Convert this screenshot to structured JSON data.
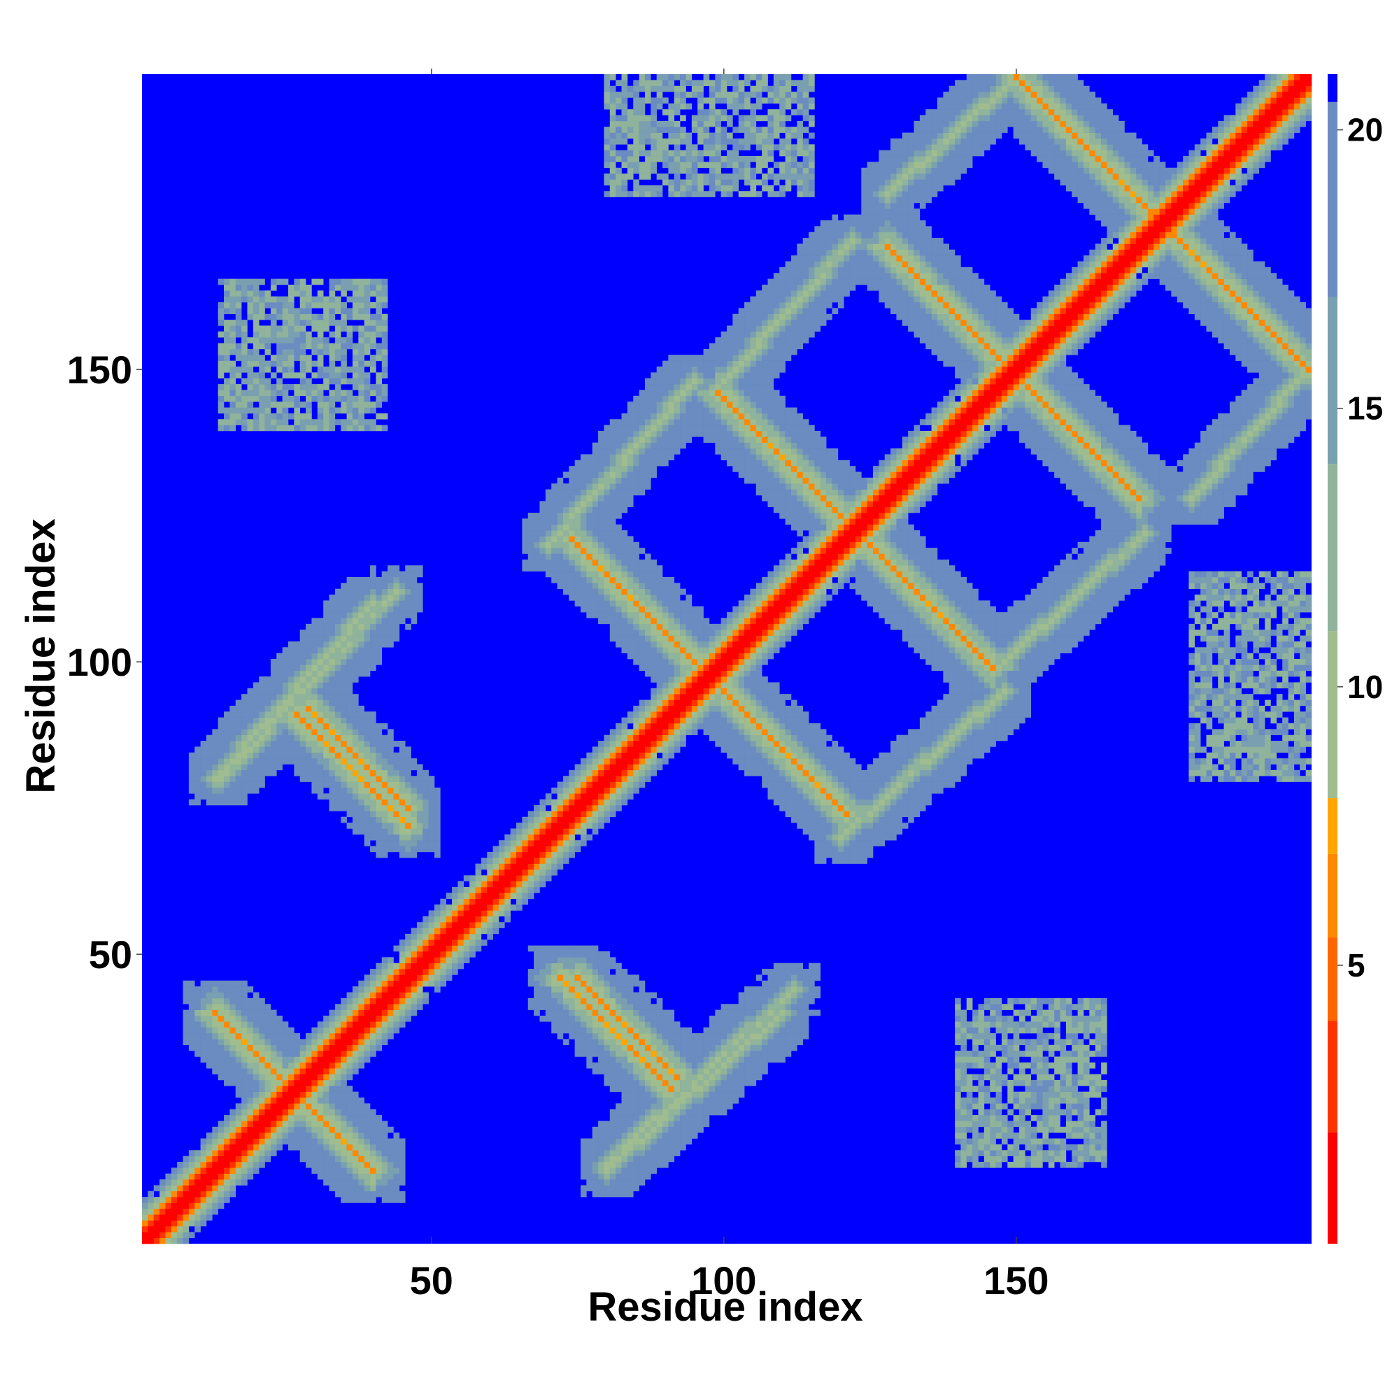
{
  "chart_data": {
    "type": "heatmap",
    "title": "",
    "xlabel": "Residue index",
    "ylabel": "Residue index",
    "n_residues": 200,
    "xlim": [
      1,
      200
    ],
    "ylim": [
      1,
      200
    ],
    "x_ticks": [
      50,
      100,
      150
    ],
    "y_ticks": [
      50,
      100,
      150
    ],
    "x_tick_labels": [
      "50",
      "100",
      "150"
    ],
    "y_tick_labels": [
      "50",
      "100",
      "150"
    ],
    "value_range": [
      0,
      21
    ],
    "colorbar_ticks": [
      5,
      10,
      15,
      20
    ],
    "colorbar_tick_labels": [
      "5",
      "10",
      "15",
      "20"
    ],
    "colorbar_colors": [
      {
        "from": 0,
        "to": 2,
        "color": "#ff0000"
      },
      {
        "from": 2,
        "to": 4,
        "color": "#ff3300"
      },
      {
        "from": 4,
        "to": 5.5,
        "color": "#ff6600"
      },
      {
        "from": 5.5,
        "to": 7,
        "color": "#ff8800"
      },
      {
        "from": 7,
        "to": 8,
        "color": "#ffa500"
      },
      {
        "from": 8,
        "to": 11,
        "color": "#9fbd8f"
      },
      {
        "from": 11,
        "to": 14,
        "color": "#8fb39b"
      },
      {
        "from": 14,
        "to": 17,
        "color": "#7a9fb0"
      },
      {
        "from": 17,
        "to": 20.5,
        "color": "#6a8cc0"
      },
      {
        "from": 20.5,
        "to": 21,
        "color": "#0000ff"
      }
    ],
    "background_color": "#0000ff",
    "diagonal_values": {
      "on_diagonal": 1,
      "first_offset": 4,
      "band_width_fraction": 0.02
    },
    "features": [
      {
        "kind": "antiparallel",
        "i_start": 13,
        "j_start": 40,
        "i_end": 40,
        "j_end": 13
      },
      {
        "kind": "antiparallel",
        "i_start": 27,
        "j_start": 91,
        "i_end": 46,
        "j_end": 72
      },
      {
        "kind": "antiparallel",
        "i_start": 74,
        "j_start": 121,
        "i_end": 121,
        "j_end": 74
      },
      {
        "kind": "antiparallel",
        "i_start": 75,
        "j_start": 46,
        "i_end": 92,
        "j_end": 29
      },
      {
        "kind": "antiparallel",
        "i_start": 99,
        "j_start": 146,
        "i_end": 146,
        "j_end": 99
      },
      {
        "kind": "antiparallel",
        "i_start": 128,
        "j_start": 171,
        "i_end": 171,
        "j_end": 128
      },
      {
        "kind": "antiparallel",
        "i_start": 150,
        "j_start": 200,
        "i_end": 200,
        "j_end": 150
      },
      {
        "kind": "parallel",
        "i_start": 13,
        "j_start": 80,
        "i_end": 40,
        "j_end": 110
      },
      {
        "kind": "parallel",
        "i_start": 80,
        "j_start": 13,
        "i_end": 110,
        "j_end": 40
      },
      {
        "kind": "parallel",
        "i_start": 70,
        "j_start": 120,
        "i_end": 95,
        "j_end": 148
      },
      {
        "kind": "parallel",
        "i_start": 120,
        "j_start": 70,
        "i_end": 148,
        "j_end": 95
      },
      {
        "kind": "parallel",
        "i_start": 80,
        "j_start": 14,
        "i_end": 112,
        "j_end": 44
      },
      {
        "kind": "parallel",
        "i_start": 128,
        "j_start": 180,
        "i_end": 150,
        "j_end": 200
      },
      {
        "kind": "parallel",
        "i_start": 180,
        "j_start": 128,
        "i_end": 200,
        "j_end": 150
      },
      {
        "kind": "parallel",
        "i_start": 100,
        "j_start": 148,
        "i_end": 122,
        "j_end": 172
      },
      {
        "kind": "parallel",
        "i_start": 148,
        "j_start": 100,
        "i_end": 172,
        "j_end": 122
      },
      {
        "kind": "cloud",
        "i_start": 14,
        "j_start": 140,
        "i_end": 42,
        "j_end": 165
      },
      {
        "kind": "cloud",
        "i_start": 140,
        "j_start": 14,
        "i_end": 165,
        "j_end": 42
      },
      {
        "kind": "cloud",
        "i_start": 80,
        "j_start": 180,
        "i_end": 115,
        "j_end": 200
      },
      {
        "kind": "cloud",
        "i_start": 180,
        "j_start": 80,
        "i_end": 200,
        "j_end": 115
      }
    ]
  }
}
